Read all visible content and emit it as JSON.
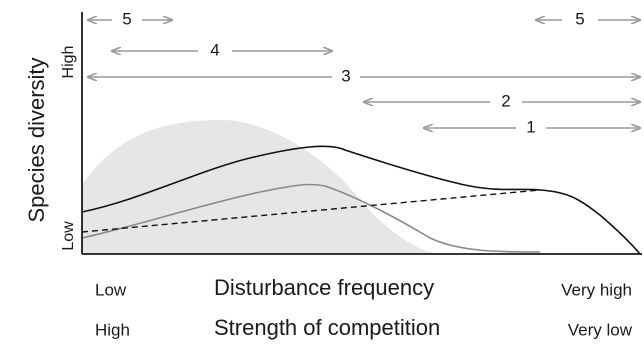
{
  "y_axis": {
    "title": "Species diversity",
    "high_label": "High",
    "low_label": "Low"
  },
  "x_axes": [
    {
      "title": "Disturbance frequency",
      "left_label": "Low",
      "right_label": "Very high"
    },
    {
      "title": "Strength of competition",
      "left_label": "High",
      "right_label": "Very low"
    }
  ],
  "ranges": [
    {
      "label": "5",
      "from": 0.0,
      "to": 0.2
    },
    {
      "label": "5",
      "from": 0.82,
      "to": 1.0
    },
    {
      "label": "4",
      "from": 0.05,
      "to": 0.45
    },
    {
      "label": "3",
      "from": 0.0,
      "to": 1.0
    },
    {
      "label": "2",
      "from": 0.5,
      "to": 1.0
    },
    {
      "label": "1",
      "from": 0.61,
      "to": 1.0
    }
  ],
  "colors": {
    "axis": "#1a1a1a",
    "arrow": "#9a9a9a",
    "shade": "#e6e6e6",
    "curve_main": "#111111",
    "curve_grey": "#8a8a8a",
    "curve_dashed": "#111111"
  }
}
